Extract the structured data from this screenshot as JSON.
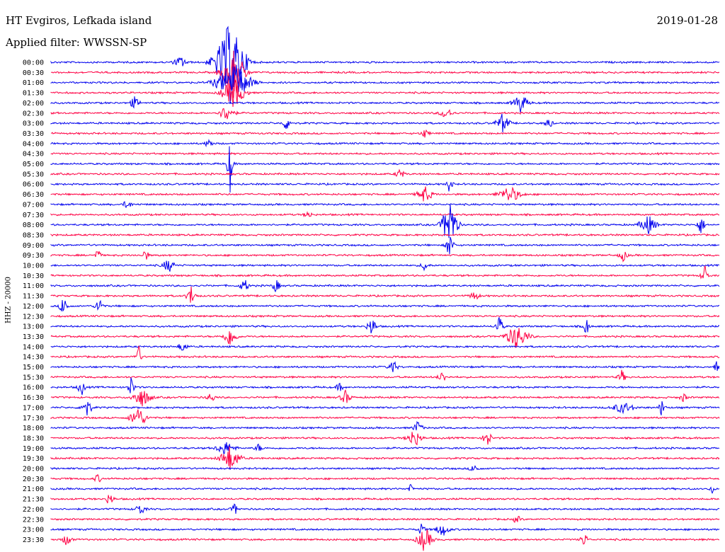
{
  "header": {
    "station": "HT Evgiros, Lefkada island",
    "filter": "Applied filter: WWSSN-SP",
    "date": "2019-01-28"
  },
  "chart_data": {
    "type": "line",
    "title": "HT Evgiros, Lefkada island",
    "subtitle": "Applied filter: WWSSN-SP",
    "date": "2019-01-28",
    "ylabel": "HHZ - 20000",
    "xlabel": "",
    "grid": false,
    "categories": [
      "00:00",
      "00:30",
      "01:00",
      "01:30",
      "02:00",
      "02:30",
      "03:00",
      "03:30",
      "04:00",
      "04:30",
      "05:00",
      "05:30",
      "06:00",
      "06:30",
      "07:00",
      "07:30",
      "08:00",
      "08:30",
      "09:00",
      "09:30",
      "10:00",
      "10:30",
      "11:00",
      "11:30",
      "12:00",
      "12:30",
      "13:00",
      "13:30",
      "14:00",
      "14:30",
      "15:00",
      "15:30",
      "16:00",
      "16:30",
      "17:00",
      "17:30",
      "18:00",
      "18:30",
      "19:00",
      "19:30",
      "20:00",
      "20:30",
      "21:00",
      "21:30",
      "22:00",
      "22:30",
      "23:00",
      "23:30"
    ],
    "series_colors": {
      "even_rows": "#0000ee",
      "odd_rows": "#ff0044"
    }
  }
}
